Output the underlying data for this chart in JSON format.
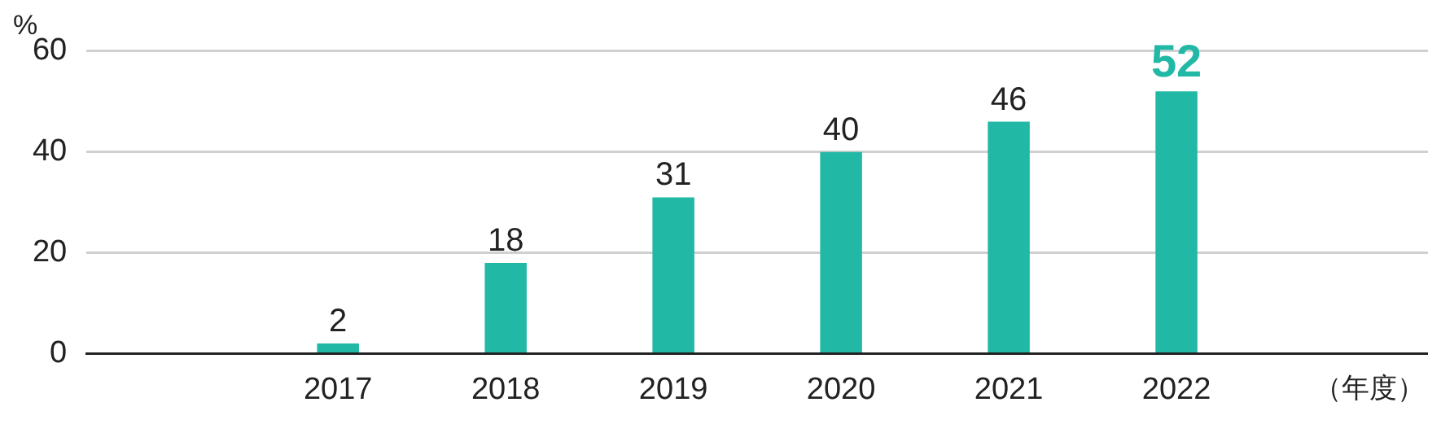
{
  "chart_data": {
    "type": "bar",
    "ylabel": "%",
    "xlabel": "（年度）",
    "categories": [
      null,
      "2017",
      "2018",
      "2019",
      "2020",
      "2021",
      "2022",
      null
    ],
    "values": [
      null,
      2,
      18,
      31,
      40,
      46,
      52,
      null
    ],
    "color": "#22b8a6",
    "ylim": [
      0,
      60
    ],
    "yticks": [
      0,
      20,
      40,
      60
    ],
    "grid": "y",
    "data_labels": true
  }
}
